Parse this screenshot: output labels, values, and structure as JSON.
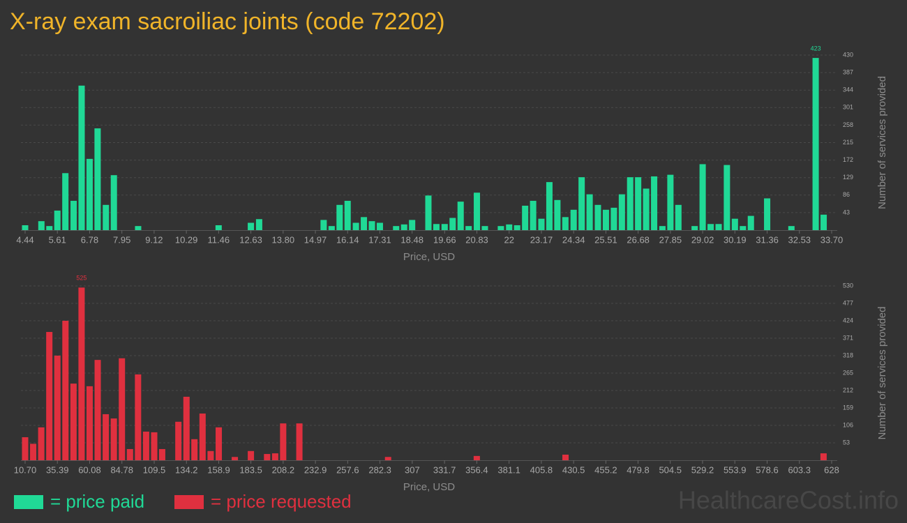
{
  "title": "X-ray exam sacroiliac joints (code 72202)",
  "watermark": "HealthcareCost.info",
  "chart_data": [
    {
      "type": "bar",
      "x": [
        4.44,
        5.03,
        5.32,
        5.61,
        5.9,
        6.2,
        6.49,
        6.78,
        7.07,
        7.37,
        7.66,
        8.54,
        11.46,
        12.63,
        12.93,
        15.27,
        15.56,
        15.85,
        16.14,
        16.44,
        16.73,
        17.02,
        17.31,
        17.9,
        18.19,
        18.48,
        19.07,
        19.36,
        19.66,
        19.95,
        20.24,
        20.53,
        20.83,
        21.12,
        21.7,
        22.0,
        22.29,
        22.58,
        22.87,
        23.17,
        23.46,
        23.75,
        24.04,
        24.34,
        24.63,
        24.92,
        25.22,
        25.51,
        25.8,
        26.09,
        26.39,
        26.68,
        26.97,
        27.26,
        27.56,
        27.85,
        28.14,
        28.73,
        29.02,
        29.31,
        29.6,
        29.9,
        30.19,
        30.48,
        30.77,
        31.36,
        32.24,
        33.12,
        33.41
      ],
      "series": [
        {
          "name": "= price paid",
          "color": "#20d996",
          "values": [
            12,
            22,
            10,
            48,
            140,
            72,
            355,
            175,
            250,
            62,
            135,
            10,
            12,
            18,
            27,
            25,
            10,
            62,
            72,
            18,
            32,
            22,
            18,
            10,
            14,
            25,
            85,
            15,
            15,
            30,
            70,
            10,
            92,
            10,
            10,
            14,
            12,
            60,
            72,
            28,
            118,
            74,
            32,
            50,
            130,
            88,
            62,
            50,
            55,
            88,
            130,
            130,
            102,
            132,
            10,
            136,
            62,
            10,
            162,
            15,
            15,
            160,
            28,
            10,
            35,
            78,
            10,
            423,
            38
          ]
        }
      ],
      "xlim": [
        4.44,
        33.7
      ],
      "xticks": [
        4.44,
        5.61,
        6.78,
        7.95,
        9.12,
        10.29,
        11.46,
        12.63,
        {
          "value": 13.8,
          "label": "13.80"
        },
        14.97,
        16.14,
        17.31,
        18.48,
        19.66,
        20.83,
        22,
        23.17,
        24.34,
        25.51,
        26.68,
        27.85,
        29.02,
        30.19,
        31.36,
        32.53,
        {
          "value": 33.7,
          "label": "33.70"
        }
      ],
      "ylim": [
        0,
        430
      ],
      "yticks": [
        43,
        86,
        129,
        172,
        215,
        258,
        301,
        344,
        387,
        430
      ],
      "x_label": "Price, USD",
      "y_label": "Number of services provided",
      "grid": true
    },
    {
      "type": "bar",
      "x": [
        10.7,
        16.87,
        23.05,
        29.22,
        35.39,
        41.56,
        47.74,
        53.91,
        60.08,
        66.26,
        72.43,
        78.6,
        84.78,
        90.95,
        97.12,
        103.3,
        109.5,
        115.6,
        128.0,
        134.2,
        140.3,
        146.5,
        152.7,
        158.9,
        171.2,
        183.5,
        195.9,
        202.1,
        208.2,
        220.6,
        288.5,
        356.4,
        424.3,
        621.8
      ],
      "series": [
        {
          "name": "= price requested",
          "color": "#e0303f",
          "values": [
            70,
            50,
            100,
            390,
            318,
            424,
            233,
            525,
            225,
            305,
            140,
            127,
            310,
            34,
            261,
            87,
            85,
            34,
            117,
            193,
            64,
            142,
            28,
            100,
            10,
            28,
            19,
            21,
            112,
            112,
            10,
            13,
            17,
            21
          ]
        }
      ],
      "xlim": [
        10.7,
        628
      ],
      "xticks": [
        {
          "value": 10.7,
          "label": "10.70"
        },
        35.39,
        60.08,
        84.78,
        109.5,
        134.2,
        158.9,
        183.5,
        208.2,
        232.9,
        257.6,
        282.3,
        307,
        331.7,
        356.4,
        381.1,
        405.8,
        430.5,
        455.2,
        479.8,
        504.5,
        529.2,
        553.9,
        578.6,
        603.3,
        628
      ],
      "ylim": [
        0,
        530
      ],
      "yticks": [
        53,
        106,
        159,
        212,
        265,
        318,
        371,
        424,
        477,
        530
      ],
      "x_label": "Price, USD",
      "y_label": "Number of services provided",
      "grid": true
    }
  ]
}
